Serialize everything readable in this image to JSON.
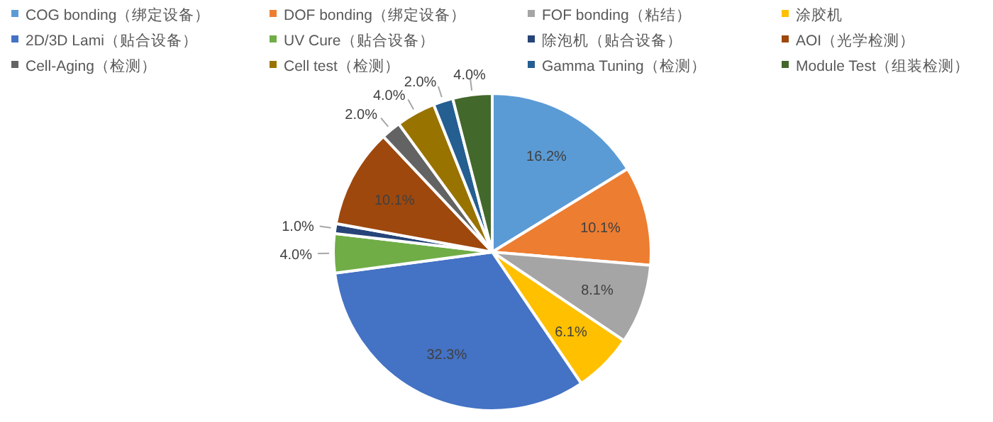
{
  "chart_data": {
    "type": "pie",
    "categories": [
      "COG bonding（绑定设备）",
      "DOF bonding（绑定设备）",
      "FOF bonding（粘结）",
      "涂胶机",
      "2D/3D Lami（贴合设备）",
      "UV Cure（贴合设备）",
      "除泡机（贴合设备）",
      "AOI（光学检测）",
      "Cell-Aging（检测）",
      "Cell test（检测）",
      "Gamma Tuning（检测）",
      "Module Test（组装检测）"
    ],
    "values": [
      16.2,
      10.1,
      8.1,
      6.1,
      32.3,
      4.0,
      1.0,
      10.1,
      2.0,
      4.0,
      2.0,
      4.0
    ],
    "colors": [
      "#5b9bd5",
      "#ed7d31",
      "#a5a5a5",
      "#ffc000",
      "#4472c4",
      "#70ad47",
      "#264478",
      "#9e480e",
      "#636363",
      "#997300",
      "#255e91",
      "#43682b"
    ],
    "value_labels": [
      "16.2%",
      "10.1%",
      "8.1%",
      "6.1%",
      "32.3%",
      "4.0%",
      "1.0%",
      "10.1%",
      "2.0%",
      "4.0%",
      "2.0%",
      "4.0%"
    ],
    "legend": "top"
  }
}
